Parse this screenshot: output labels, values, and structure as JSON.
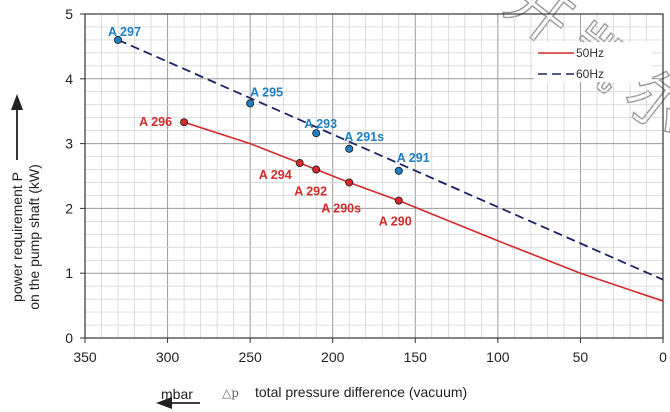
{
  "chart_data": {
    "type": "line",
    "title": "",
    "xlabel": "total pressure difference (vacuum)",
    "xlabel_symbol": "△p",
    "x_unit": "mbar",
    "ylabel_line1": "power requirement P",
    "ylabel_line2": "on the pump shaft (kW)",
    "xlim": [
      350,
      0
    ],
    "x_reversed": true,
    "ylim": [
      0,
      5
    ],
    "xticks": [
      350,
      300,
      250,
      200,
      150,
      100,
      50,
      0
    ],
    "yticks": [
      0,
      1,
      2,
      3,
      4,
      5
    ],
    "grid": true,
    "legend_position": "top-right",
    "series": [
      {
        "name": "50Hz",
        "color": "#d42a2a",
        "dash": "solid",
        "line": [
          [
            290,
            3.33
          ],
          [
            250,
            3.0
          ],
          [
            220,
            2.7
          ],
          [
            190,
            2.4
          ],
          [
            160,
            2.12
          ],
          [
            100,
            1.5
          ],
          [
            50,
            1.0
          ],
          [
            0,
            0.57
          ]
        ],
        "points": [
          {
            "label": "A 296",
            "x": 290,
            "y": 3.33
          },
          {
            "label": "A 294",
            "x": 220,
            "y": 2.7
          },
          {
            "label": "A 292",
            "x": 210,
            "y": 2.6
          },
          {
            "label": "A 290s",
            "x": 190,
            "y": 2.4
          },
          {
            "label": "A 290",
            "x": 160,
            "y": 2.12
          }
        ]
      },
      {
        "name": "60Hz",
        "color": "#1b2466",
        "dash": "dashed",
        "line": [
          [
            330,
            4.6
          ],
          [
            0,
            0.9
          ]
        ],
        "points": [
          {
            "label": "A 297",
            "x": 330,
            "y": 4.6
          },
          {
            "label": "A 295",
            "x": 250,
            "y": 3.62
          },
          {
            "label": "A 293",
            "x": 210,
            "y": 3.16
          },
          {
            "label": "A 291s",
            "x": 190,
            "y": 2.92
          },
          {
            "label": "A 291",
            "x": 160,
            "y": 2.58
          }
        ]
      }
    ],
    "point_label_color_60hz": "#1f7fc1"
  }
}
